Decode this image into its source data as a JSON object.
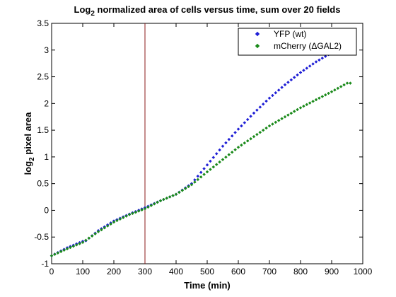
{
  "chart_data": {
    "type": "scatter",
    "title": {
      "prefix": "Log",
      "subscript": "2",
      "suffix": " normalized area of cells versus time, sum over 20 fields"
    },
    "xlabel": "Time (min)",
    "ylabel": {
      "prefix": "log",
      "subscript": "2",
      "suffix": " pixel area"
    },
    "xlim": [
      0,
      1000
    ],
    "ylim": [
      -1,
      3.5
    ],
    "xticks": [
      "0",
      "100",
      "200",
      "300",
      "400",
      "500",
      "600",
      "700",
      "800",
      "900",
      "1000"
    ],
    "yticks": [
      "-1",
      "-0.5",
      "0",
      "0.5",
      "1",
      "1.5",
      "2",
      "2.5",
      "3",
      "3.5"
    ],
    "grid": false,
    "legend_position": "top-right",
    "vertical_line": {
      "x": 300,
      "color": "#8b1a1a"
    },
    "series": [
      {
        "name": "YFP (wt)",
        "color": "#1f1fd6",
        "marker": "diamond",
        "x_start": 0,
        "x_end": 900,
        "x_step": 10,
        "anchors": [
          [
            0,
            -0.85
          ],
          [
            50,
            -0.7
          ],
          [
            100,
            -0.58
          ],
          [
            110,
            -0.57
          ],
          [
            150,
            -0.38
          ],
          [
            200,
            -0.2
          ],
          [
            250,
            -0.07
          ],
          [
            300,
            0.05
          ],
          [
            350,
            0.18
          ],
          [
            400,
            0.3
          ],
          [
            450,
            0.5
          ],
          [
            500,
            0.85
          ],
          [
            550,
            1.2
          ],
          [
            600,
            1.52
          ],
          [
            650,
            1.82
          ],
          [
            700,
            2.1
          ],
          [
            750,
            2.35
          ],
          [
            800,
            2.58
          ],
          [
            850,
            2.78
          ],
          [
            900,
            2.95
          ]
        ]
      },
      {
        "name": "mCherry (ΔGAL2)",
        "color": "#1a8a1a",
        "marker": "diamond",
        "x_start": 0,
        "x_end": 960,
        "x_step": 10,
        "anchors": [
          [
            0,
            -0.85
          ],
          [
            50,
            -0.72
          ],
          [
            100,
            -0.6
          ],
          [
            150,
            -0.4
          ],
          [
            200,
            -0.22
          ],
          [
            250,
            -0.08
          ],
          [
            300,
            0.03
          ],
          [
            350,
            0.18
          ],
          [
            400,
            0.3
          ],
          [
            450,
            0.48
          ],
          [
            500,
            0.72
          ],
          [
            550,
            0.95
          ],
          [
            600,
            1.18
          ],
          [
            650,
            1.38
          ],
          [
            700,
            1.58
          ],
          [
            750,
            1.75
          ],
          [
            800,
            1.92
          ],
          [
            850,
            2.07
          ],
          [
            900,
            2.22
          ],
          [
            950,
            2.38
          ],
          [
            960,
            2.38
          ]
        ]
      }
    ]
  }
}
